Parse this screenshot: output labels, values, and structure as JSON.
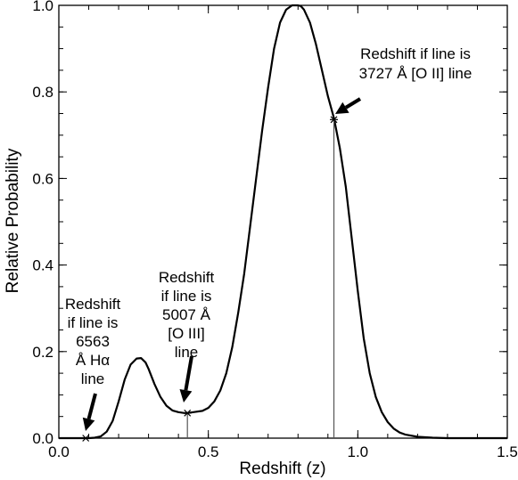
{
  "chart_data": {
    "type": "line",
    "xlabel": "Redshift (z)",
    "ylabel": "Relative Probability",
    "xlim": [
      0.0,
      1.5
    ],
    "ylim": [
      0.0,
      1.0
    ],
    "xticks": [
      "0.0",
      "0.5",
      "1.0",
      "1.5"
    ],
    "yticks": [
      "0.0",
      "0.2",
      "0.4",
      "0.6",
      "0.8",
      "1.0"
    ],
    "grid": false,
    "legend": "none",
    "series": [
      {
        "x": [
          0.0,
          0.08,
          0.1,
          0.12,
          0.14,
          0.16,
          0.18,
          0.2,
          0.22,
          0.24,
          0.26,
          0.275,
          0.29,
          0.3,
          0.32,
          0.34,
          0.36,
          0.38,
          0.4,
          0.42,
          0.43,
          0.45,
          0.48,
          0.5,
          0.52,
          0.54,
          0.56,
          0.58,
          0.6,
          0.62,
          0.64,
          0.66,
          0.68,
          0.7,
          0.72,
          0.74,
          0.76,
          0.78,
          0.8,
          0.81,
          0.82,
          0.84,
          0.86,
          0.88,
          0.9,
          0.92,
          0.94,
          0.96,
          0.98,
          1.0,
          1.02,
          1.04,
          1.06,
          1.08,
          1.1,
          1.12,
          1.14,
          1.16,
          1.2,
          1.25,
          1.3,
          1.35,
          1.4,
          1.45,
          1.5
        ],
        "y": [
          0.0,
          0.0,
          0.0,
          0.001,
          0.004,
          0.015,
          0.04,
          0.085,
          0.135,
          0.17,
          0.184,
          0.185,
          0.175,
          0.16,
          0.125,
          0.095,
          0.075,
          0.064,
          0.06,
          0.058,
          0.058,
          0.06,
          0.063,
          0.07,
          0.085,
          0.11,
          0.15,
          0.21,
          0.29,
          0.38,
          0.49,
          0.6,
          0.71,
          0.81,
          0.9,
          0.96,
          0.99,
          1.0,
          1.0,
          0.998,
          0.99,
          0.96,
          0.91,
          0.85,
          0.79,
          0.74,
          0.67,
          0.58,
          0.46,
          0.34,
          0.23,
          0.15,
          0.095,
          0.06,
          0.037,
          0.022,
          0.013,
          0.008,
          0.003,
          0.001,
          0.0,
          0.0,
          0.0,
          0.0,
          0.0
        ]
      }
    ],
    "markers": [
      {
        "z": 0.09,
        "p": 0.0
      },
      {
        "z": 0.43,
        "p": 0.058
      },
      {
        "z": 0.92,
        "p": 0.736
      }
    ],
    "annotations": [
      {
        "lines": [
          "Redshift",
          "if line is",
          "6563",
          "Å Hα",
          "line"
        ]
      },
      {
        "lines": [
          "Redshift",
          "if line is",
          "5007 Å",
          "[O III]",
          "line"
        ]
      },
      {
        "lines": [
          "Redshift if line is",
          "3727 Å [O II] line"
        ]
      }
    ]
  }
}
